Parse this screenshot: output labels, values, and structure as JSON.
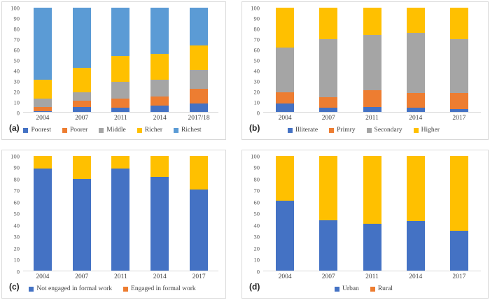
{
  "figure": {
    "background": "#ffffff",
    "panel_border_color": "#d9d9d9",
    "tick_color": "#595959",
    "label_color": "#404040"
  },
  "chart_data": [
    {
      "id": "a",
      "panel_label": "(a)",
      "type": "bar",
      "stacked": true,
      "grid": false,
      "legend_position": "bottom",
      "title": "",
      "xlabel": "",
      "ylabel": "",
      "ylim": [
        0,
        100
      ],
      "yticks": [
        0,
        10,
        20,
        30,
        40,
        50,
        60,
        70,
        80,
        90,
        100
      ],
      "categories": [
        "2004",
        "2007",
        "2011",
        "2014",
        "2017/18"
      ],
      "series": [
        {
          "name": "Poorest",
          "color": "#4472C4",
          "values": [
            1,
            5,
            4,
            6,
            8
          ]
        },
        {
          "name": "Poorer",
          "color": "#ED7D31",
          "values": [
            4,
            6,
            9,
            9,
            14
          ]
        },
        {
          "name": "Middle",
          "color": "#A5A5A5",
          "values": [
            8,
            8,
            16,
            16,
            18
          ]
        },
        {
          "name": "Richer",
          "color": "#FFC000",
          "values": [
            18,
            23,
            25,
            25,
            24
          ]
        },
        {
          "name": "Richest",
          "color": "#5B9BD5",
          "values": [
            69,
            58,
            46,
            44,
            36
          ]
        }
      ]
    },
    {
      "id": "b",
      "panel_label": "(b)",
      "type": "bar",
      "stacked": true,
      "grid": false,
      "legend_position": "bottom",
      "title": "",
      "xlabel": "",
      "ylabel": "",
      "ylim": [
        0,
        100
      ],
      "yticks": [
        0,
        10,
        20,
        30,
        40,
        50,
        60,
        70,
        80,
        90,
        100
      ],
      "categories": [
        "2004",
        "2007",
        "2011",
        "2014",
        "2017"
      ],
      "series": [
        {
          "name": "Illiterate",
          "color": "#4472C4",
          "values": [
            8,
            4,
            5,
            4,
            3
          ]
        },
        {
          "name": "Primry",
          "color": "#ED7D31",
          "values": [
            11,
            10,
            16,
            14,
            15
          ]
        },
        {
          "name": "Secondary",
          "color": "#A5A5A5",
          "values": [
            43,
            56,
            53,
            58,
            52
          ]
        },
        {
          "name": "Higher",
          "color": "#FFC000",
          "values": [
            38,
            30,
            26,
            24,
            30
          ]
        }
      ]
    },
    {
      "id": "c",
      "panel_label": "(c)",
      "type": "bar",
      "stacked": true,
      "grid": false,
      "legend_position": "bottom",
      "title": "",
      "xlabel": "",
      "ylabel": "",
      "ylim": [
        0,
        100
      ],
      "yticks": [
        0,
        10,
        20,
        30,
        40,
        50,
        60,
        70,
        80,
        90,
        100
      ],
      "categories": [
        "2004",
        "2007",
        "2011",
        "2014",
        "2017"
      ],
      "series": [
        {
          "name": "Not engaged in formal work",
          "color": "#4472C4",
          "values": [
            89,
            80,
            89,
            82,
            71
          ]
        },
        {
          "name": "Engaged in formal work",
          "color": "#FFC000",
          "legend_color": "#ED7D31",
          "values": [
            11,
            20,
            11,
            18,
            29
          ]
        }
      ]
    },
    {
      "id": "d",
      "panel_label": "(d)",
      "type": "bar",
      "stacked": true,
      "grid": false,
      "legend_position": "bottom",
      "title": "",
      "xlabel": "",
      "ylabel": "",
      "ylim": [
        0,
        100
      ],
      "yticks": [
        0,
        10,
        20,
        30,
        40,
        50,
        60,
        70,
        80,
        90,
        100
      ],
      "categories": [
        "2004",
        "2007",
        "2011",
        "2014",
        "2017"
      ],
      "series": [
        {
          "name": "Urban",
          "color": "#4472C4",
          "values": [
            61,
            44,
            41,
            43,
            35
          ]
        },
        {
          "name": "Rural",
          "color": "#FFC000",
          "legend_color": "#ED7D31",
          "values": [
            39,
            56,
            59,
            57,
            65
          ]
        }
      ]
    }
  ]
}
